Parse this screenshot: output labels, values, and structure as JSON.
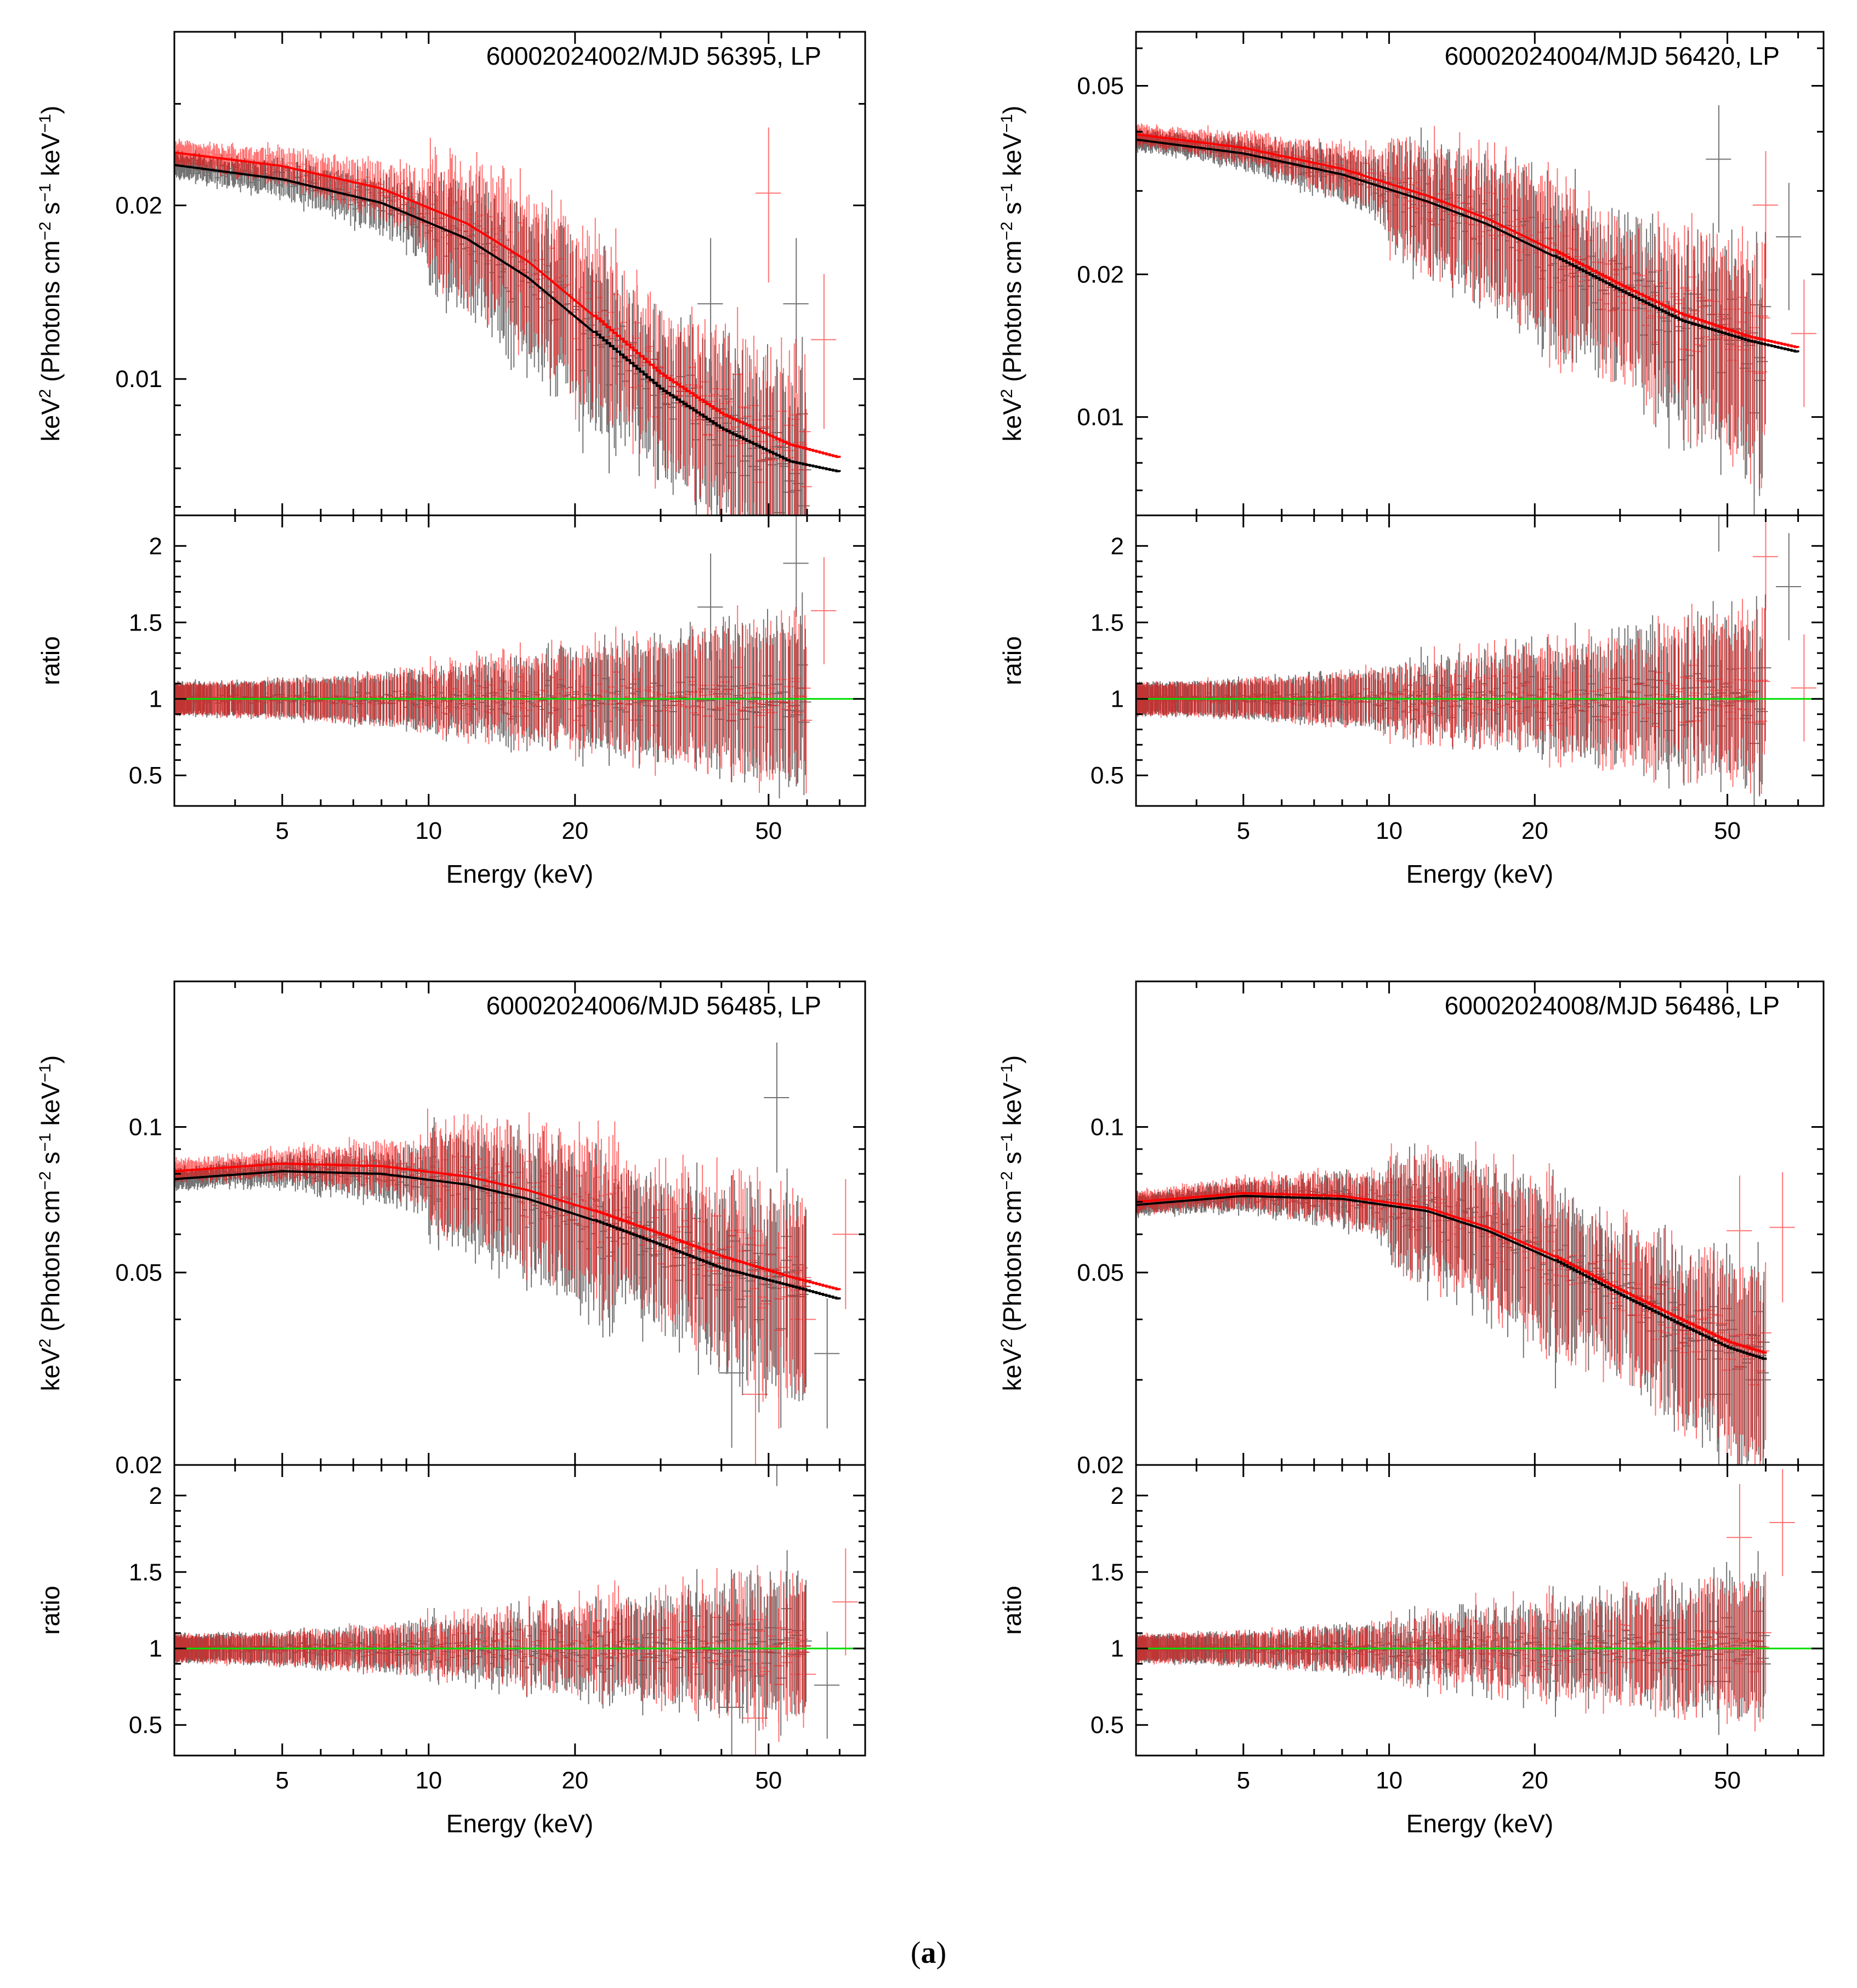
{
  "caption": {
    "open": "(",
    "label": "a",
    "close": ")"
  },
  "colors": {
    "black_series": "#000000",
    "red_series": "#ff0000",
    "unity_line": "#00dd00",
    "axis": "#000000"
  },
  "chart_data": [
    {
      "type": "scatter",
      "title": "60002024002/MJD 56395, LP",
      "top_panel": {
        "ylabel_main": "keV",
        "ylabel_sup": "2",
        "ylabel_tail": " (Photons cm",
        "ylabel_unit_a": "−2",
        "ylabel_mid": " s",
        "ylabel_unit_b": "−1",
        "ylabel_mid2": " keV",
        "ylabel_unit_c": "−1",
        "ylabel_end": ")",
        "yscale": "log",
        "ylim": [
          0.0058,
          0.04
        ],
        "yticks": [
          0.01,
          0.02
        ],
        "ytick_labels": [
          "0.01",
          "0.02"
        ]
      },
      "bottom_panel": {
        "ylabel": "ratio",
        "ylim": [
          0.3,
          2.2
        ],
        "yticks": [
          0.5,
          1,
          1.5,
          2
        ],
        "ytick_labels": [
          "0.5",
          "1",
          "1.5",
          "2"
        ]
      },
      "xlabel": "Energy (keV)",
      "xscale": "log",
      "xlim": [
        3,
        79
      ],
      "xticks": [
        5,
        10,
        20,
        50
      ],
      "xtick_labels": [
        "5",
        "10",
        "20",
        "50"
      ],
      "model": {
        "black": [
          [
            3,
            0.0235
          ],
          [
            5,
            0.0222
          ],
          [
            8,
            0.0202
          ],
          [
            12,
            0.0175
          ],
          [
            16,
            0.015
          ],
          [
            22,
            0.012
          ],
          [
            30,
            0.0096
          ],
          [
            40,
            0.0082
          ],
          [
            55,
            0.0072
          ],
          [
            70,
            0.0069
          ]
        ],
        "red": [
          [
            3,
            0.0247
          ],
          [
            5,
            0.0234
          ],
          [
            8,
            0.0214
          ],
          [
            12,
            0.0186
          ],
          [
            16,
            0.016
          ],
          [
            22,
            0.0128
          ],
          [
            30,
            0.0102
          ],
          [
            40,
            0.0087
          ],
          [
            55,
            0.0077
          ],
          [
            70,
            0.0073
          ]
        ]
      },
      "noise": {
        "spectrum_frac": 0.18,
        "ratio_base": 0.12,
        "outliers": [
          [
            38,
            0.0135
          ],
          [
            50,
            0.021
          ],
          [
            57,
            0.0135
          ],
          [
            65,
            0.0117
          ]
        ]
      }
    },
    {
      "type": "scatter",
      "title": "60002024004/MJD 56420, LP",
      "top_panel": {
        "ylabel_main": "keV",
        "ylabel_sup": "2",
        "ylabel_tail": " (Photons cm",
        "ylabel_unit_a": "−2",
        "ylabel_mid": " s",
        "ylabel_unit_b": "−1",
        "ylabel_mid2": " keV",
        "ylabel_unit_c": "−1",
        "ylabel_end": ")",
        "yscale": "log",
        "ylim": [
          0.0062,
          0.065
        ],
        "yticks": [
          0.01,
          0.02,
          0.05
        ],
        "ytick_labels": [
          "0.01",
          "0.02",
          "0.05"
        ]
      },
      "bottom_panel": {
        "ylabel": "ratio",
        "ylim": [
          0.3,
          2.2
        ],
        "yticks": [
          0.5,
          1,
          1.5,
          2
        ],
        "ytick_labels": [
          "0.5",
          "1",
          "1.5",
          "2"
        ]
      },
      "xlabel": "Energy (keV)",
      "xscale": "log",
      "xlim": [
        3,
        79
      ],
      "xticks": [
        5,
        10,
        20,
        50
      ],
      "xtick_labels": [
        "5",
        "10",
        "20",
        "50"
      ],
      "model": {
        "black": [
          [
            3,
            0.0385
          ],
          [
            5,
            0.036
          ],
          [
            8,
            0.0325
          ],
          [
            12,
            0.0285
          ],
          [
            16,
            0.0255
          ],
          [
            22,
            0.0218
          ],
          [
            30,
            0.0185
          ],
          [
            40,
            0.016
          ],
          [
            55,
            0.0145
          ],
          [
            70,
            0.0137
          ]
        ],
        "red": [
          [
            3,
            0.0395
          ],
          [
            5,
            0.037
          ],
          [
            8,
            0.0334
          ],
          [
            12,
            0.0293
          ],
          [
            16,
            0.0262
          ],
          [
            22,
            0.0224
          ],
          [
            30,
            0.019
          ],
          [
            40,
            0.0165
          ],
          [
            55,
            0.0148
          ],
          [
            70,
            0.014
          ]
        ]
      },
      "noise": {
        "spectrum_frac": 0.22,
        "ratio_base": 0.12,
        "outliers": [
          [
            48,
            0.035
          ],
          [
            60,
            0.028
          ],
          [
            67,
            0.024
          ],
          [
            72,
            0.015
          ]
        ]
      }
    },
    {
      "type": "scatter",
      "title": "60002024006/MJD 56485, LP",
      "top_panel": {
        "ylabel_main": "keV",
        "ylabel_sup": "2",
        "ylabel_tail": " (Photons cm",
        "ylabel_unit_a": "−2",
        "ylabel_mid": " s",
        "ylabel_unit_b": "−1",
        "ylabel_mid2": " keV",
        "ylabel_unit_c": "−1",
        "ylabel_end": ")",
        "yscale": "log",
        "ylim": [
          0.02,
          0.2
        ],
        "yticks": [
          0.02,
          0.05,
          0.1
        ],
        "ytick_labels": [
          "0.02",
          "0.05",
          "0.1"
        ]
      },
      "bottom_panel": {
        "ylabel": "ratio",
        "ylim": [
          0.3,
          2.2
        ],
        "yticks": [
          0.5,
          1,
          1.5,
          2
        ],
        "ytick_labels": [
          "0.5",
          "1",
          "1.5",
          "2"
        ]
      },
      "xlabel": "Energy (keV)",
      "xscale": "log",
      "xlim": [
        3,
        79
      ],
      "xticks": [
        5,
        10,
        20,
        50
      ],
      "xtick_labels": [
        "5",
        "10",
        "20",
        "50"
      ],
      "model": {
        "black": [
          [
            3,
            0.078
          ],
          [
            5,
            0.081
          ],
          [
            8,
            0.08
          ],
          [
            12,
            0.076
          ],
          [
            16,
            0.071
          ],
          [
            22,
            0.064
          ],
          [
            30,
            0.057
          ],
          [
            40,
            0.051
          ],
          [
            55,
            0.047
          ],
          [
            70,
            0.044
          ]
        ],
        "red": [
          [
            3,
            0.081
          ],
          [
            5,
            0.084
          ],
          [
            8,
            0.083
          ],
          [
            12,
            0.079
          ],
          [
            16,
            0.074
          ],
          [
            22,
            0.067
          ],
          [
            30,
            0.06
          ],
          [
            40,
            0.054
          ],
          [
            55,
            0.049
          ],
          [
            70,
            0.046
          ]
        ]
      },
      "noise": {
        "spectrum_frac": 0.2,
        "ratio_base": 0.1,
        "outliers": [
          [
            42,
            0.031
          ],
          [
            47,
            0.028
          ],
          [
            52,
            0.115
          ],
          [
            59,
            0.04
          ],
          [
            66,
            0.034
          ],
          [
            72,
            0.06
          ]
        ]
      }
    },
    {
      "type": "scatter",
      "title": "60002024008/MJD 56486, LP",
      "top_panel": {
        "ylabel_main": "keV",
        "ylabel_sup": "2",
        "ylabel_tail": " (Photons cm",
        "ylabel_unit_a": "−2",
        "ylabel_mid": " s",
        "ylabel_unit_b": "−1",
        "ylabel_mid2": " keV",
        "ylabel_unit_c": "−1",
        "ylabel_end": ")",
        "yscale": "log",
        "ylim": [
          0.02,
          0.2
        ],
        "yticks": [
          0.02,
          0.05,
          0.1
        ],
        "ytick_labels": [
          "0.02",
          "0.05",
          "0.1"
        ]
      },
      "bottom_panel": {
        "ylabel": "ratio",
        "ylim": [
          0.3,
          2.2
        ],
        "yticks": [
          0.5,
          1,
          1.5,
          2
        ],
        "ytick_labels": [
          "0.5",
          "1",
          "1.5",
          "2"
        ]
      },
      "xlabel": "Energy (keV)",
      "xscale": "log",
      "xlim": [
        3,
        79
      ],
      "xticks": [
        5,
        10,
        20,
        50
      ],
      "xtick_labels": [
        "5",
        "10",
        "20",
        "50"
      ],
      "model": {
        "black": [
          [
            3,
            0.069
          ],
          [
            5,
            0.072
          ],
          [
            8,
            0.071
          ],
          [
            12,
            0.067
          ],
          [
            16,
            0.061
          ],
          [
            22,
            0.053
          ],
          [
            30,
            0.045
          ],
          [
            40,
            0.039
          ],
          [
            50,
            0.035
          ],
          [
            60,
            0.033
          ]
        ],
        "red": [
          [
            3,
            0.07
          ],
          [
            5,
            0.073
          ],
          [
            8,
            0.072
          ],
          [
            12,
            0.068
          ],
          [
            16,
            0.062
          ],
          [
            22,
            0.054
          ],
          [
            30,
            0.046
          ],
          [
            40,
            0.04
          ],
          [
            50,
            0.036
          ],
          [
            60,
            0.034
          ]
        ]
      },
      "noise": {
        "spectrum_frac": 0.2,
        "ratio_base": 0.1,
        "outliers": [
          [
            48,
            0.028
          ],
          [
            53,
            0.061
          ],
          [
            58,
            0.03
          ],
          [
            65,
            0.062
          ]
        ]
      }
    }
  ]
}
